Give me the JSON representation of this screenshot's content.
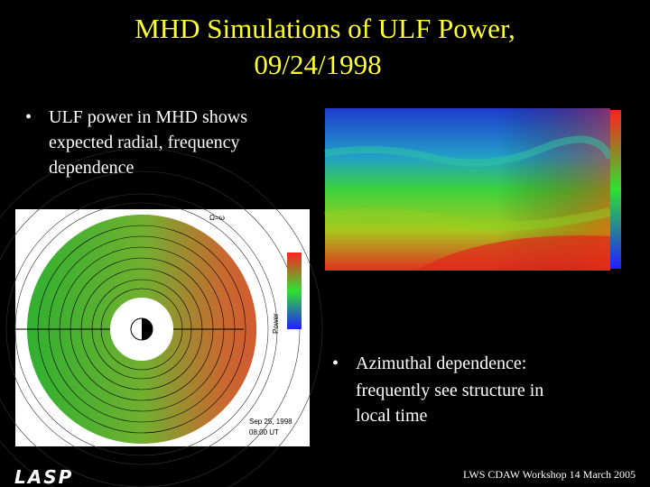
{
  "slide": {
    "title": [
      "MHD Simulations of ULF Power,",
      "09/24/1998"
    ],
    "bullets": [
      {
        "lines": [
          "ULF power in MHD shows",
          "expected radial, frequency",
          "dependence"
        ]
      },
      {
        "lines": [
          "Azimuthal dependence:",
          "frequently see structure in",
          "local time"
        ]
      }
    ],
    "polar_plot": {
      "labels": [
        "Ω=ω",
        "Sep 25, 1998",
        "08:00 UT",
        "Power"
      ]
    },
    "footer": "LWS CDAW Workshop 14 March 2005",
    "logo": "LASP"
  }
}
